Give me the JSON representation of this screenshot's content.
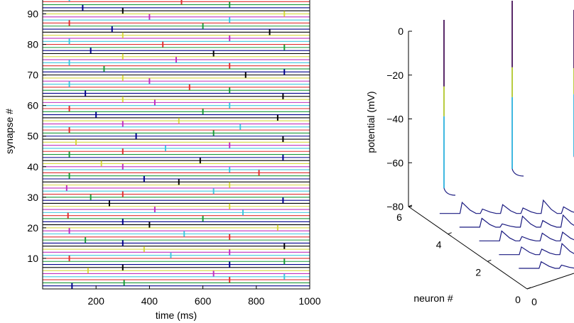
{
  "chart_data": [
    {
      "type": "raster",
      "title": "",
      "xlabel": "time (ms)",
      "ylabel": "synapse #",
      "xlim": [
        0,
        1000
      ],
      "ylim": [
        0,
        95
      ],
      "x_ticks": [
        200,
        400,
        600,
        800,
        1000
      ],
      "x_tick_labels": [
        "200",
        "400",
        "600",
        "800",
        "1000"
      ],
      "y_ticks": [
        10,
        20,
        30,
        40,
        50,
        60,
        70,
        80,
        90
      ],
      "y_tick_labels": [
        "10",
        "20",
        "30",
        "40",
        "50",
        "60",
        "70",
        "80",
        "90"
      ],
      "num_synapses": 95,
      "line_colors": [
        "#00008b",
        "#1a9a3a",
        "#e03030",
        "#40c8e0",
        "#c030c0",
        "#d8d840",
        "#000000"
      ],
      "spikes": [
        {
          "s": 1,
          "t": 110
        },
        {
          "s": 2,
          "t": 305
        },
        {
          "s": 3,
          "t": 700
        },
        {
          "s": 4,
          "t": 905
        },
        {
          "s": 5,
          "t": 640
        },
        {
          "s": 6,
          "t": 170
        },
        {
          "s": 7,
          "t": 300
        },
        {
          "s": 8,
          "t": 700
        },
        {
          "s": 9,
          "t": 905
        },
        {
          "s": 10,
          "t": 100
        },
        {
          "s": 11,
          "t": 480
        },
        {
          "s": 12,
          "t": 700
        },
        {
          "s": 13,
          "t": 380
        },
        {
          "s": 14,
          "t": 905
        },
        {
          "s": 15,
          "t": 300
        },
        {
          "s": 16,
          "t": 160
        },
        {
          "s": 17,
          "t": 700
        },
        {
          "s": 18,
          "t": 530
        },
        {
          "s": 19,
          "t": 100
        },
        {
          "s": 20,
          "t": 880
        },
        {
          "s": 21,
          "t": 400
        },
        {
          "s": 22,
          "t": 300
        },
        {
          "s": 23,
          "t": 600
        },
        {
          "s": 24,
          "t": 95
        },
        {
          "s": 25,
          "t": 750
        },
        {
          "s": 26,
          "t": 420
        },
        {
          "s": 27,
          "t": 700
        },
        {
          "s": 28,
          "t": 250
        },
        {
          "s": 29,
          "t": 900
        },
        {
          "s": 30,
          "t": 180
        },
        {
          "s": 31,
          "t": 300
        },
        {
          "s": 32,
          "t": 640
        },
        {
          "s": 33,
          "t": 90
        },
        {
          "s": 34,
          "t": 700
        },
        {
          "s": 35,
          "t": 510
        },
        {
          "s": 36,
          "t": 380
        },
        {
          "s": 37,
          "t": 100
        },
        {
          "s": 38,
          "t": 810
        },
        {
          "s": 39,
          "t": 700
        },
        {
          "s": 40,
          "t": 300
        },
        {
          "s": 41,
          "t": 220
        },
        {
          "s": 42,
          "t": 590
        },
        {
          "s": 43,
          "t": 900
        },
        {
          "s": 44,
          "t": 100
        },
        {
          "s": 45,
          "t": 300
        },
        {
          "s": 46,
          "t": 460
        },
        {
          "s": 47,
          "t": 700
        },
        {
          "s": 48,
          "t": 125
        },
        {
          "s": 49,
          "t": 900
        },
        {
          "s": 50,
          "t": 350
        },
        {
          "s": 51,
          "t": 640
        },
        {
          "s": 52,
          "t": 100
        },
        {
          "s": 53,
          "t": 740
        },
        {
          "s": 54,
          "t": 300
        },
        {
          "s": 55,
          "t": 510
        },
        {
          "s": 56,
          "t": 880
        },
        {
          "s": 57,
          "t": 200
        },
        {
          "s": 58,
          "t": 600
        },
        {
          "s": 59,
          "t": 100
        },
        {
          "s": 60,
          "t": 700
        },
        {
          "s": 61,
          "t": 420
        },
        {
          "s": 62,
          "t": 300
        },
        {
          "s": 63,
          "t": 900
        },
        {
          "s": 64,
          "t": 160
        },
        {
          "s": 65,
          "t": 700
        },
        {
          "s": 66,
          "t": 550
        },
        {
          "s": 67,
          "t": 100
        },
        {
          "s": 68,
          "t": 400
        },
        {
          "s": 69,
          "t": 300
        },
        {
          "s": 70,
          "t": 760
        },
        {
          "s": 71,
          "t": 905
        },
        {
          "s": 72,
          "t": 230
        },
        {
          "s": 73,
          "t": 700
        },
        {
          "s": 74,
          "t": 100
        },
        {
          "s": 75,
          "t": 500
        },
        {
          "s": 76,
          "t": 300
        },
        {
          "s": 77,
          "t": 640
        },
        {
          "s": 78,
          "t": 180
        },
        {
          "s": 79,
          "t": 905
        },
        {
          "s": 80,
          "t": 450
        },
        {
          "s": 81,
          "t": 100
        },
        {
          "s": 82,
          "t": 700
        },
        {
          "s": 83,
          "t": 300
        },
        {
          "s": 84,
          "t": 850
        },
        {
          "s": 85,
          "t": 260
        },
        {
          "s": 86,
          "t": 600
        },
        {
          "s": 87,
          "t": 100
        },
        {
          "s": 88,
          "t": 700
        },
        {
          "s": 89,
          "t": 400
        },
        {
          "s": 90,
          "t": 905
        },
        {
          "s": 91,
          "t": 300
        },
        {
          "s": 92,
          "t": 150
        },
        {
          "s": 93,
          "t": 700
        },
        {
          "s": 94,
          "t": 520
        },
        {
          "s": 95,
          "t": 100
        }
      ]
    },
    {
      "type": "waterfall-3d",
      "title": "",
      "zlabel": "potential (mV)",
      "ylabel": "neuron #",
      "xlabel": "",
      "zlim": [
        -80,
        0
      ],
      "z_ticks": [
        0,
        -20,
        -40,
        -60,
        -80
      ],
      "z_tick_labels": [
        "0",
        "−20",
        "−40",
        "−60",
        "−80"
      ],
      "y_ticks": [
        6,
        4,
        2,
        0
      ],
      "y_tick_labels": [
        "6",
        "4",
        "2",
        "0"
      ],
      "x_tick_labels": [
        "0"
      ],
      "traces": [
        {
          "neuron": 5,
          "spike_peak_mV": 0,
          "psp_mV": [
            -80,
            -70,
            -76,
            -72,
            -75,
            -68,
            -74
          ]
        },
        {
          "neuron": 4,
          "spike_peak_mV": null,
          "psp_mV": [
            -80,
            -72,
            -77,
            -70,
            -74,
            -69,
            -73
          ]
        },
        {
          "neuron": 3,
          "spike_peak_mV": null,
          "psp_mV": [
            -80,
            -71,
            -76,
            -73,
            -72,
            -70,
            -74
          ]
        },
        {
          "neuron": 2,
          "spike_peak_mV": null,
          "psp_mV": [
            -80,
            -73,
            -75,
            -70,
            -74,
            -72,
            -73
          ]
        },
        {
          "neuron": 1,
          "spike_peak_mV": null,
          "psp_mV": [
            -80,
            -74,
            -77,
            -72,
            -75,
            -71,
            -74
          ]
        }
      ],
      "second_spike_peak_mV": 0,
      "third_spike_peak_mV": -10
    }
  ]
}
